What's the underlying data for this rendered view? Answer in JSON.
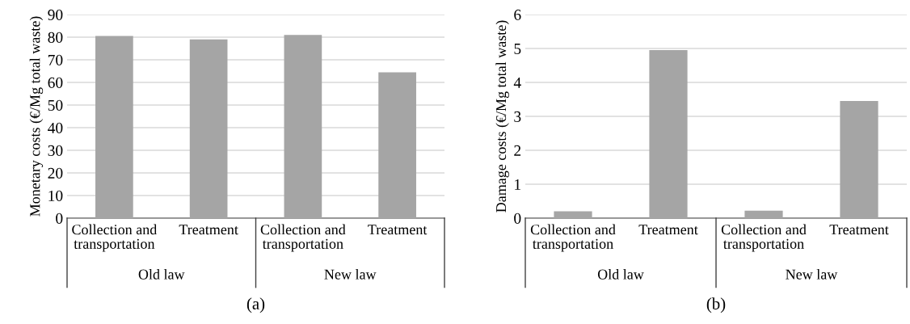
{
  "chart_data": [
    {
      "type": "bar",
      "title": "(a)",
      "ylabel": "Monetary costs (€/Mg total waste)",
      "categories": [
        "Collection and\ntransportation",
        "Treatment",
        "Collection and\ntransportation",
        "Treatment"
      ],
      "values": [
        80.5,
        79,
        81,
        64.5
      ],
      "color": "#a5a5a5",
      "ylim": [
        0,
        90
      ],
      "yticks": [
        0,
        10,
        20,
        30,
        40,
        50,
        60,
        70,
        80,
        90
      ],
      "grid": "y",
      "legend": false,
      "annotations": [
        "Old law",
        "New law"
      ]
    },
    {
      "type": "bar",
      "title": "(b)",
      "ylabel": "Damage costs (€/Mg total waste)",
      "categories": [
        "Collection and\ntransportation",
        "Treatment",
        "Collection and\ntransportation",
        "Treatment"
      ],
      "values": [
        0.2,
        4.95,
        0.22,
        3.45
      ],
      "color": "#a5a5a5",
      "ylim": [
        0,
        6
      ],
      "yticks": [
        0,
        1,
        2,
        3,
        4,
        5,
        6
      ],
      "grid": "y",
      "legend": false,
      "annotations": [
        "Old law",
        "New law"
      ]
    }
  ]
}
